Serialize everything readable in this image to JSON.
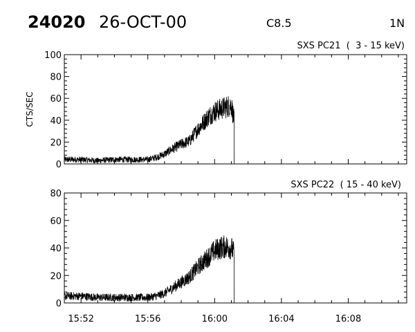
{
  "header": {
    "event_id": "24020",
    "date": "26-OCT-00",
    "flare_class": "C8.5",
    "location": "1N"
  },
  "chart_data": [
    {
      "type": "line",
      "title": "SXS PC21  (  3 - 15 keV)",
      "ylabel": "CTS/SEC",
      "xlabel": "",
      "xlim": [
        "15:51:00",
        "16:11:30"
      ],
      "ylim": [
        0,
        100
      ],
      "yticks": [
        0,
        20,
        40,
        60,
        80,
        100
      ],
      "xticks": [
        "15:52",
        "15:56",
        "16:00",
        "16:04",
        "16:08"
      ],
      "series": [
        {
          "x": [
            "15:51:00",
            "15:52:00",
            "15:53:00",
            "15:54:00",
            "15:55:00",
            "15:56:00",
            "15:56:30",
            "15:57:00",
            "15:57:30",
            "15:58:00",
            "15:58:30",
            "15:59:00",
            "15:59:20",
            "15:59:40",
            "16:00:00",
            "16:00:20",
            "16:00:40",
            "16:01:00",
            "16:01:10"
          ],
          "y": [
            4,
            4,
            3,
            4,
            4,
            4,
            6,
            9,
            14,
            18,
            21,
            32,
            38,
            44,
            48,
            50,
            52,
            54,
            40
          ]
        }
      ]
    },
    {
      "type": "line",
      "title": "SXS PC22  ( 15 - 40 keV)",
      "ylabel": "",
      "xlabel": "",
      "xlim": [
        "15:51:00",
        "16:11:30"
      ],
      "ylim": [
        0,
        80
      ],
      "yticks": [
        0,
        20,
        40,
        60,
        80
      ],
      "xticks": [
        "15:52",
        "15:56",
        "16:00",
        "16:04",
        "16:08"
      ],
      "series": [
        {
          "x": [
            "15:51:00",
            "15:52:00",
            "15:53:00",
            "15:54:00",
            "15:55:00",
            "15:56:00",
            "15:56:30",
            "15:57:00",
            "15:57:30",
            "15:58:00",
            "15:58:30",
            "15:59:00",
            "15:59:20",
            "15:59:40",
            "16:00:00",
            "16:00:20",
            "16:00:40",
            "16:01:00",
            "16:01:10"
          ],
          "y": [
            5,
            5,
            4,
            4,
            4,
            4,
            5,
            7,
            11,
            15,
            19,
            26,
            30,
            34,
            38,
            40,
            41,
            40,
            36
          ]
        }
      ]
    }
  ]
}
